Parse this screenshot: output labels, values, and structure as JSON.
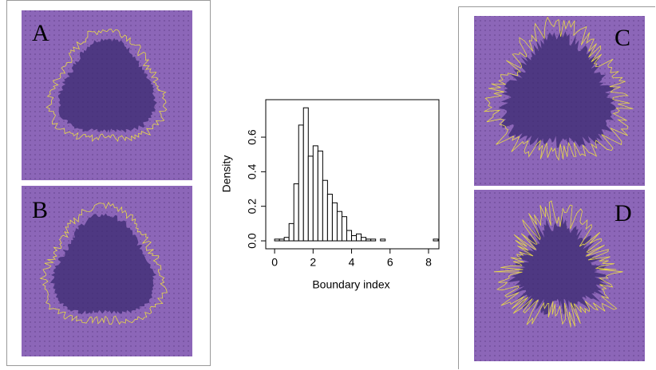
{
  "panels": [
    "A",
    "B",
    "C",
    "D"
  ],
  "chart_data": {
    "type": "histogram",
    "xlabel": "Boundary index",
    "ylabel": "Density",
    "bins": [
      0,
      0.25,
      0.5,
      0.75,
      1.0,
      1.25,
      1.5,
      1.75,
      2.0,
      2.25,
      2.5,
      2.75,
      3.0,
      3.25,
      3.5,
      3.75,
      4.0,
      4.25,
      4.5,
      4.75,
      5.0,
      5.25,
      5.5,
      5.75,
      6.0,
      6.25,
      6.5,
      6.75,
      7.0,
      7.25,
      7.5,
      7.75,
      8.0,
      8.25,
      8.5
    ],
    "values": [
      0.01,
      0.01,
      0.02,
      0.1,
      0.33,
      0.67,
      0.77,
      0.49,
      0.55,
      0.52,
      0.35,
      0.27,
      0.22,
      0.17,
      0.14,
      0.06,
      0.03,
      0.04,
      0.02,
      0.01,
      0.01,
      0,
      0.01,
      0,
      0,
      0,
      0,
      0,
      0,
      0,
      0,
      0,
      0,
      0.01
    ],
    "color": "#ffffff",
    "xlim": [
      -0.46,
      8.54
    ],
    "xticks": [
      0,
      2,
      4,
      6,
      8
    ],
    "ylim": [
      -0.046,
      0.817
    ],
    "yticks": [
      {
        "value": 0,
        "label": "0.0"
      },
      {
        "value": 0.2,
        "label": "0.2"
      },
      {
        "value": 0.4,
        "label": "0.4"
      },
      {
        "value": 0.6,
        "label": "0.6"
      }
    ]
  }
}
